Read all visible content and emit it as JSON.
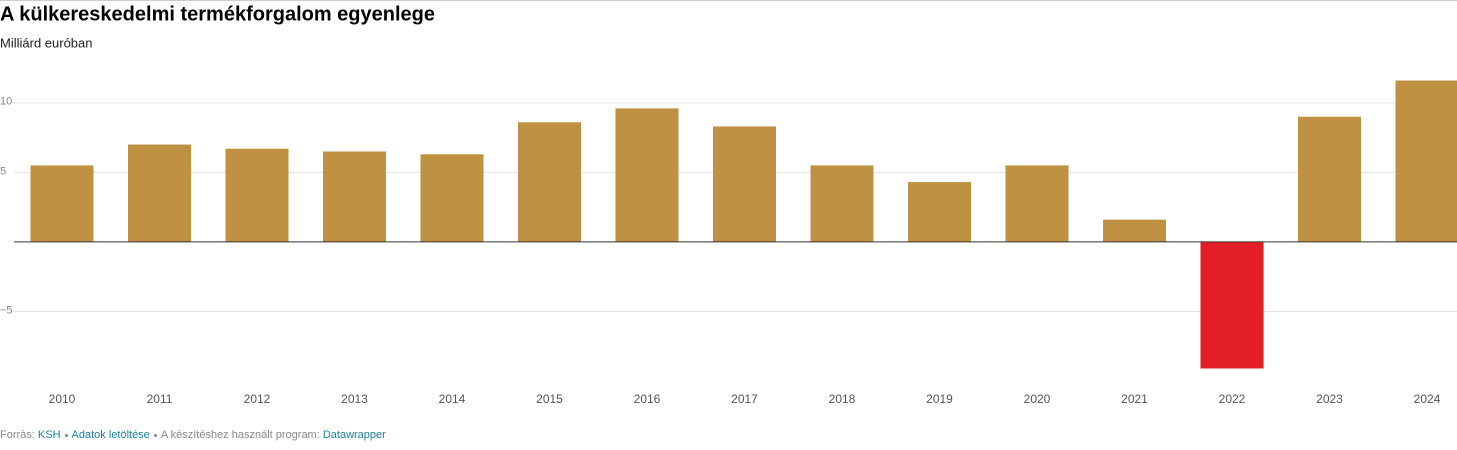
{
  "chart_data": {
    "type": "bar",
    "title": "A külkereskedelmi termékforgalom egyenlege",
    "subtitle": "Milliárd euróban",
    "categories": [
      "2010",
      "2011",
      "2012",
      "2013",
      "2014",
      "2015",
      "2016",
      "2017",
      "2018",
      "2019",
      "2020",
      "2021",
      "2022",
      "2023",
      "2024"
    ],
    "values": [
      5.5,
      7.0,
      6.7,
      6.5,
      6.3,
      8.6,
      9.6,
      8.3,
      5.5,
      4.3,
      5.5,
      1.6,
      -9.1,
      9.0,
      11.6
    ],
    "color": "#bf9143",
    "negative_color": "#e31e24",
    "ylim": [
      -10,
      12
    ],
    "yticks": [
      {
        "value": -5,
        "label": "−5"
      },
      5,
      10
    ],
    "grid": true,
    "footer": {
      "source_label": "Forrás:",
      "source": "KSH",
      "download": "Adatok letöltése",
      "made_with_label": "A készítéshez használt program:",
      "made_with": "Datawrapper"
    }
  }
}
